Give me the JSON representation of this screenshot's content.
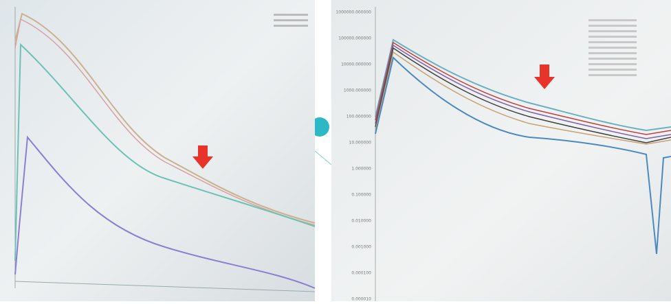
{
  "right_screen": {
    "axis_labels": [
      "1000000.000000",
      "100000.000000",
      "10000.000000",
      "1000.000000",
      "100.000000",
      "10.000000",
      "1.000000",
      "0.100000",
      "0.010000",
      "0.001000",
      "0.000100",
      "0.000010"
    ]
  }
}
